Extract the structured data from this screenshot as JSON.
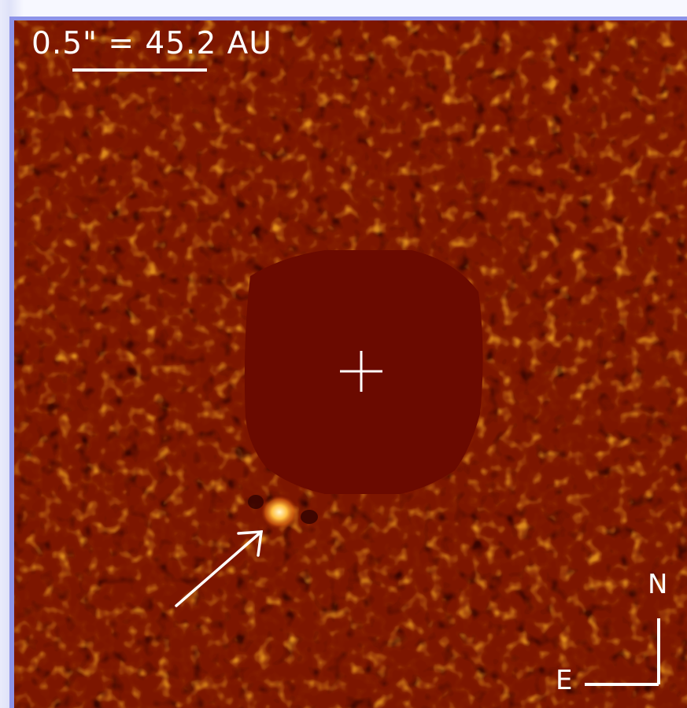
{
  "figure": {
    "scale_label": "0.5\" = 45.2 AU",
    "compass": {
      "north_label": "N",
      "east_label": "E"
    },
    "colors": {
      "background_noise": "#7a1400",
      "mask": "#6b0a00",
      "speckle": "#f0a020",
      "annotation": "#ffffff"
    },
    "icons": {
      "star_position": "crosshair-icon",
      "companion_pointer": "arrow-icon"
    }
  }
}
